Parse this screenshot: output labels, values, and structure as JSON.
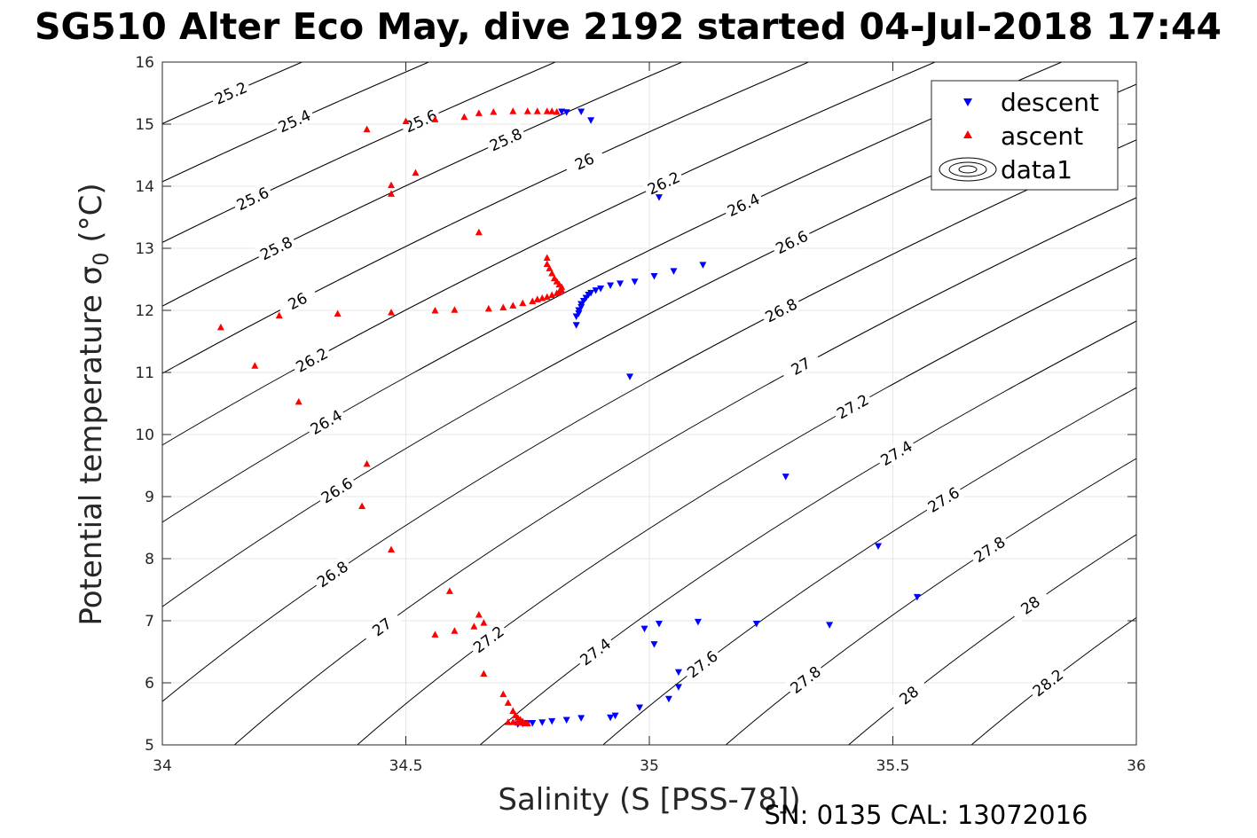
{
  "title": "SG510 Alter Eco May, dive 2192 started 04-Jul-2018 17:44",
  "footer": "SN: 0135  CAL: 13072016",
  "chart_data": {
    "type": "scatter",
    "title": "SG510 Alter Eco May, dive 2192 started 04-Jul-2018 17:44",
    "xlabel": "Salinity (S [PSS-78])",
    "ylabel": "Potential temperature σ",
    "ylabel_subscript": "0",
    "ylabel_unit": " (°C)",
    "xlim": [
      34,
      36
    ],
    "ylim": [
      5,
      16
    ],
    "xticks": [
      "34",
      "34.5",
      "35",
      "35.5",
      "36"
    ],
    "yticks": [
      "5",
      "6",
      "7",
      "8",
      "9",
      "10",
      "11",
      "12",
      "13",
      "14",
      "15",
      "16"
    ],
    "grid": true,
    "legend_position": "top-right",
    "legend": [
      "descent",
      "ascent",
      "data1"
    ],
    "colors": {
      "descent": "#0000ff",
      "ascent": "#ff0000",
      "contour": "#000000",
      "grid": "#e6e6e6"
    },
    "series": [
      {
        "name": "descent",
        "marker": "triangle-down",
        "points": [
          [
            34.82,
            15.2
          ],
          [
            34.83,
            15.19
          ],
          [
            34.86,
            15.2
          ],
          [
            34.88,
            15.06
          ],
          [
            35.02,
            13.82
          ],
          [
            35.11,
            12.73
          ],
          [
            35.05,
            12.63
          ],
          [
            35.01,
            12.55
          ],
          [
            34.97,
            12.46
          ],
          [
            34.94,
            12.43
          ],
          [
            34.92,
            12.4
          ],
          [
            34.9,
            12.35
          ],
          [
            34.89,
            12.32
          ],
          [
            34.88,
            12.28
          ],
          [
            34.875,
            12.25
          ],
          [
            34.87,
            12.2
          ],
          [
            34.865,
            12.15
          ],
          [
            34.86,
            12.1
          ],
          [
            34.86,
            12.05
          ],
          [
            34.855,
            12.0
          ],
          [
            34.855,
            11.95
          ],
          [
            34.85,
            11.9
          ],
          [
            34.85,
            11.76
          ],
          [
            34.96,
            10.93
          ],
          [
            35.28,
            9.32
          ],
          [
            35.47,
            8.2
          ],
          [
            35.55,
            7.38
          ],
          [
            35.1,
            6.98
          ],
          [
            35.02,
            6.95
          ],
          [
            34.99,
            6.87
          ],
          [
            35.01,
            6.62
          ],
          [
            35.22,
            6.95
          ],
          [
            35.37,
            6.93
          ],
          [
            35.06,
            6.17
          ],
          [
            35.06,
            5.93
          ],
          [
            35.04,
            5.74
          ],
          [
            34.98,
            5.6
          ],
          [
            34.93,
            5.47
          ],
          [
            34.92,
            5.44
          ],
          [
            34.86,
            5.43
          ],
          [
            34.83,
            5.4
          ],
          [
            34.8,
            5.38
          ],
          [
            34.78,
            5.36
          ],
          [
            34.76,
            5.35
          ],
          [
            34.75,
            5.35
          ],
          [
            34.74,
            5.34
          ],
          [
            34.73,
            5.33
          ]
        ]
      },
      {
        "name": "ascent",
        "marker": "triangle-up",
        "points": [
          [
            34.42,
            14.92
          ],
          [
            34.5,
            15.05
          ],
          [
            34.56,
            15.08
          ],
          [
            34.62,
            15.12
          ],
          [
            34.65,
            15.18
          ],
          [
            34.68,
            15.2
          ],
          [
            34.72,
            15.21
          ],
          [
            34.75,
            15.21
          ],
          [
            34.77,
            15.21
          ],
          [
            34.79,
            15.21
          ],
          [
            34.8,
            15.21
          ],
          [
            34.81,
            15.2
          ],
          [
            34.47,
            14.02
          ],
          [
            34.47,
            13.88
          ],
          [
            34.52,
            14.22
          ],
          [
            34.65,
            13.26
          ],
          [
            34.79,
            12.85
          ],
          [
            34.79,
            12.75
          ],
          [
            34.795,
            12.68
          ],
          [
            34.8,
            12.6
          ],
          [
            34.805,
            12.52
          ],
          [
            34.81,
            12.47
          ],
          [
            34.815,
            12.42
          ],
          [
            34.82,
            12.38
          ],
          [
            34.82,
            12.33
          ],
          [
            34.815,
            12.3
          ],
          [
            34.81,
            12.28
          ],
          [
            34.8,
            12.25
          ],
          [
            34.79,
            12.22
          ],
          [
            34.78,
            12.2
          ],
          [
            34.77,
            12.18
          ],
          [
            34.76,
            12.15
          ],
          [
            34.74,
            12.12
          ],
          [
            34.72,
            12.08
          ],
          [
            34.7,
            12.05
          ],
          [
            34.67,
            12.03
          ],
          [
            34.6,
            12.01
          ],
          [
            34.56,
            12.0
          ],
          [
            34.47,
            11.97
          ],
          [
            34.36,
            11.95
          ],
          [
            34.24,
            11.92
          ],
          [
            34.12,
            11.73
          ],
          [
            34.19,
            11.11
          ],
          [
            34.28,
            10.53
          ],
          [
            34.42,
            9.53
          ],
          [
            34.41,
            8.85
          ],
          [
            34.47,
            8.15
          ],
          [
            34.59,
            7.48
          ],
          [
            34.65,
            7.1
          ],
          [
            34.66,
            6.97
          ],
          [
            34.64,
            6.91
          ],
          [
            34.6,
            6.84
          ],
          [
            34.56,
            6.78
          ],
          [
            34.66,
            6.15
          ],
          [
            34.7,
            5.82
          ],
          [
            34.71,
            5.68
          ],
          [
            34.72,
            5.55
          ],
          [
            34.725,
            5.48
          ],
          [
            34.73,
            5.44
          ],
          [
            34.735,
            5.41
          ],
          [
            34.74,
            5.38
          ],
          [
            34.71,
            5.37
          ],
          [
            34.72,
            5.37
          ],
          [
            34.73,
            5.36
          ],
          [
            34.74,
            5.36
          ],
          [
            34.745,
            5.35
          ],
          [
            34.75,
            5.35
          ]
        ]
      }
    ],
    "contour_labels": [
      "25.2",
      "25.4",
      "25.6",
      "25.8",
      "26",
      "26.2",
      "26.4",
      "26.6",
      "26.8",
      "27",
      "27.2",
      "27.4",
      "27.6",
      "27.8",
      "28",
      "28.2"
    ]
  }
}
